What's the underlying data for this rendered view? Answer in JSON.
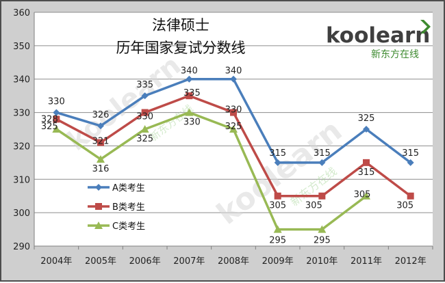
{
  "chart_data": {
    "type": "line",
    "title": "法律硕士",
    "subtitle": "历年国家复试分数线",
    "categories": [
      "2004年",
      "2005年",
      "2006年",
      "2007年",
      "2008年",
      "2009年",
      "2010年",
      "2011年",
      "2012年"
    ],
    "series": [
      {
        "name": "A类考生",
        "color": "#4a7ebb",
        "marker": "diamond",
        "values": [
          330,
          326,
          335,
          340,
          340,
          315,
          315,
          325,
          315
        ]
      },
      {
        "name": "B类考生",
        "color": "#be4b48",
        "marker": "square",
        "values": [
          328,
          321,
          330,
          335,
          330,
          305,
          305,
          315,
          305
        ]
      },
      {
        "name": "C类考生",
        "color": "#98b954",
        "marker": "triangle",
        "values": [
          325,
          316,
          325,
          330,
          325,
          295,
          295,
          305,
          null
        ]
      }
    ],
    "y_ticks": [
      "290",
      "300",
      "310",
      "320",
      "330",
      "340",
      "350",
      "360"
    ],
    "ylim": [
      290,
      360
    ],
    "grid": true,
    "legend_position": "left-lower"
  },
  "brand": {
    "logo_text": "koolearn",
    "logo_subtext": "新东方在线"
  },
  "colors": {
    "frame_bg": "#cfcfcf",
    "plot_bg": "#ffffff",
    "gridline": "#8c8c8c",
    "brand_green": "#3d8a2f"
  }
}
